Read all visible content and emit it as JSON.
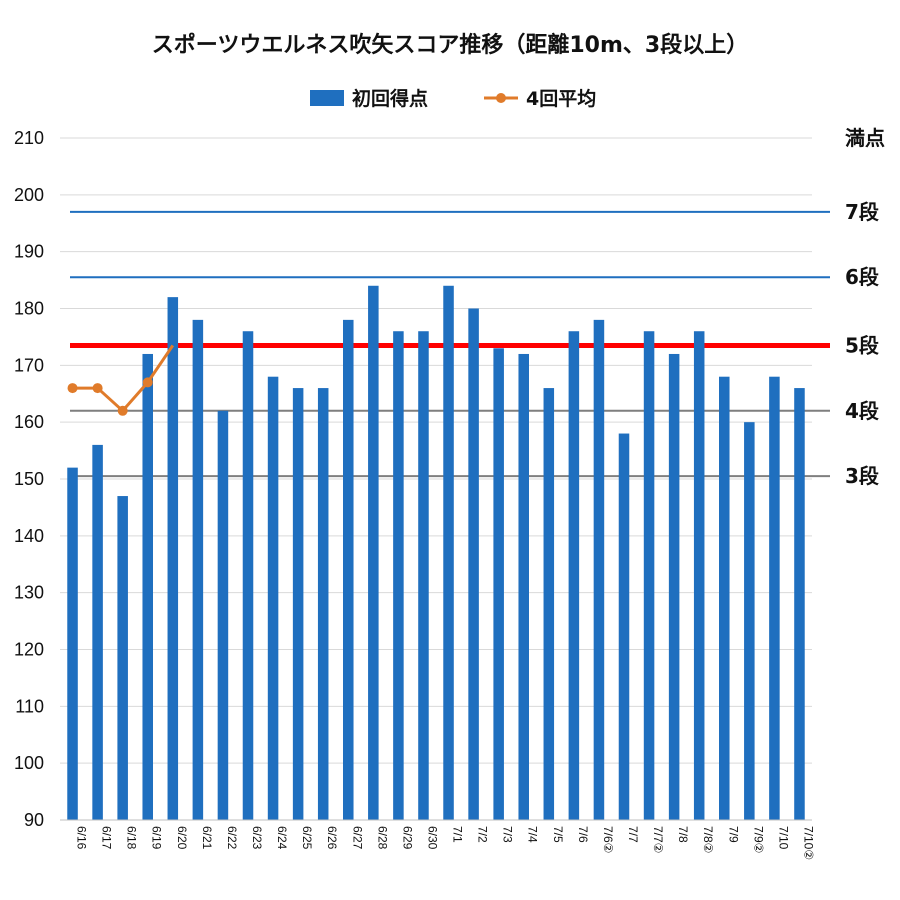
{
  "chart_data": {
    "type": "bar",
    "title": "スポーツウエルネス吹矢スコア推移（距離10m、3段以上）",
    "categories": [
      "6/16",
      "6/17",
      "6/18",
      "6/19",
      "6/20",
      "6/21",
      "6/22",
      "6/23",
      "6/24",
      "6/25",
      "6/26",
      "6/27",
      "6/28",
      "6/29",
      "6/30",
      "7/1",
      "7/2",
      "7/3",
      "7/4",
      "7/5",
      "7/6",
      "7/6②",
      "7/7",
      "7/7②",
      "7/8",
      "7/8②",
      "7/9",
      "7/9②",
      "7/10",
      "7/10②"
    ],
    "series": [
      {
        "name": "初回得点",
        "type": "bar",
        "color": "#1f6fbf",
        "values": [
          152,
          156,
          147,
          172,
          182,
          178,
          162,
          176,
          168,
          166,
          166,
          178,
          184,
          176,
          176,
          184,
          180,
          173,
          172,
          166,
          176,
          178,
          158,
          176,
          172,
          176,
          168,
          160,
          168,
          166
        ]
      },
      {
        "name": "4回平均",
        "type": "line",
        "color": "#e07b2a",
        "values": [
          166,
          166,
          162,
          167,
          173.5,
          null,
          null,
          null,
          null,
          null,
          null,
          null,
          null,
          null,
          null,
          null,
          null,
          null,
          null,
          null,
          null,
          null,
          null,
          null,
          null,
          null,
          null,
          null,
          null,
          null
        ]
      }
    ],
    "ylim": [
      90,
      210
    ],
    "yticks": [
      90,
      100,
      110,
      120,
      130,
      140,
      150,
      160,
      170,
      180,
      190,
      200,
      210
    ],
    "grid": true,
    "legend": "top-center",
    "reference_lines": [
      {
        "label": "満点",
        "value": 210,
        "color": "#1f6fbf",
        "line": false
      },
      {
        "label": "7段",
        "value": 197,
        "color": "#1f6fbf",
        "line": true,
        "label_color": "#111111"
      },
      {
        "label": "6段",
        "value": 185.5,
        "color": "#1f6fbf",
        "line": true,
        "label_color": "#111111"
      },
      {
        "label": "5段",
        "value": 173.5,
        "color": "#ff0000",
        "line": true,
        "label_color": "#ff0000"
      },
      {
        "label": "4段",
        "value": 162,
        "color": "#7f7f7f",
        "line": true,
        "label_color": "#111111"
      },
      {
        "label": "3段",
        "value": 150.5,
        "color": "#7f7f7f",
        "line": true,
        "label_color": "#111111"
      }
    ]
  }
}
